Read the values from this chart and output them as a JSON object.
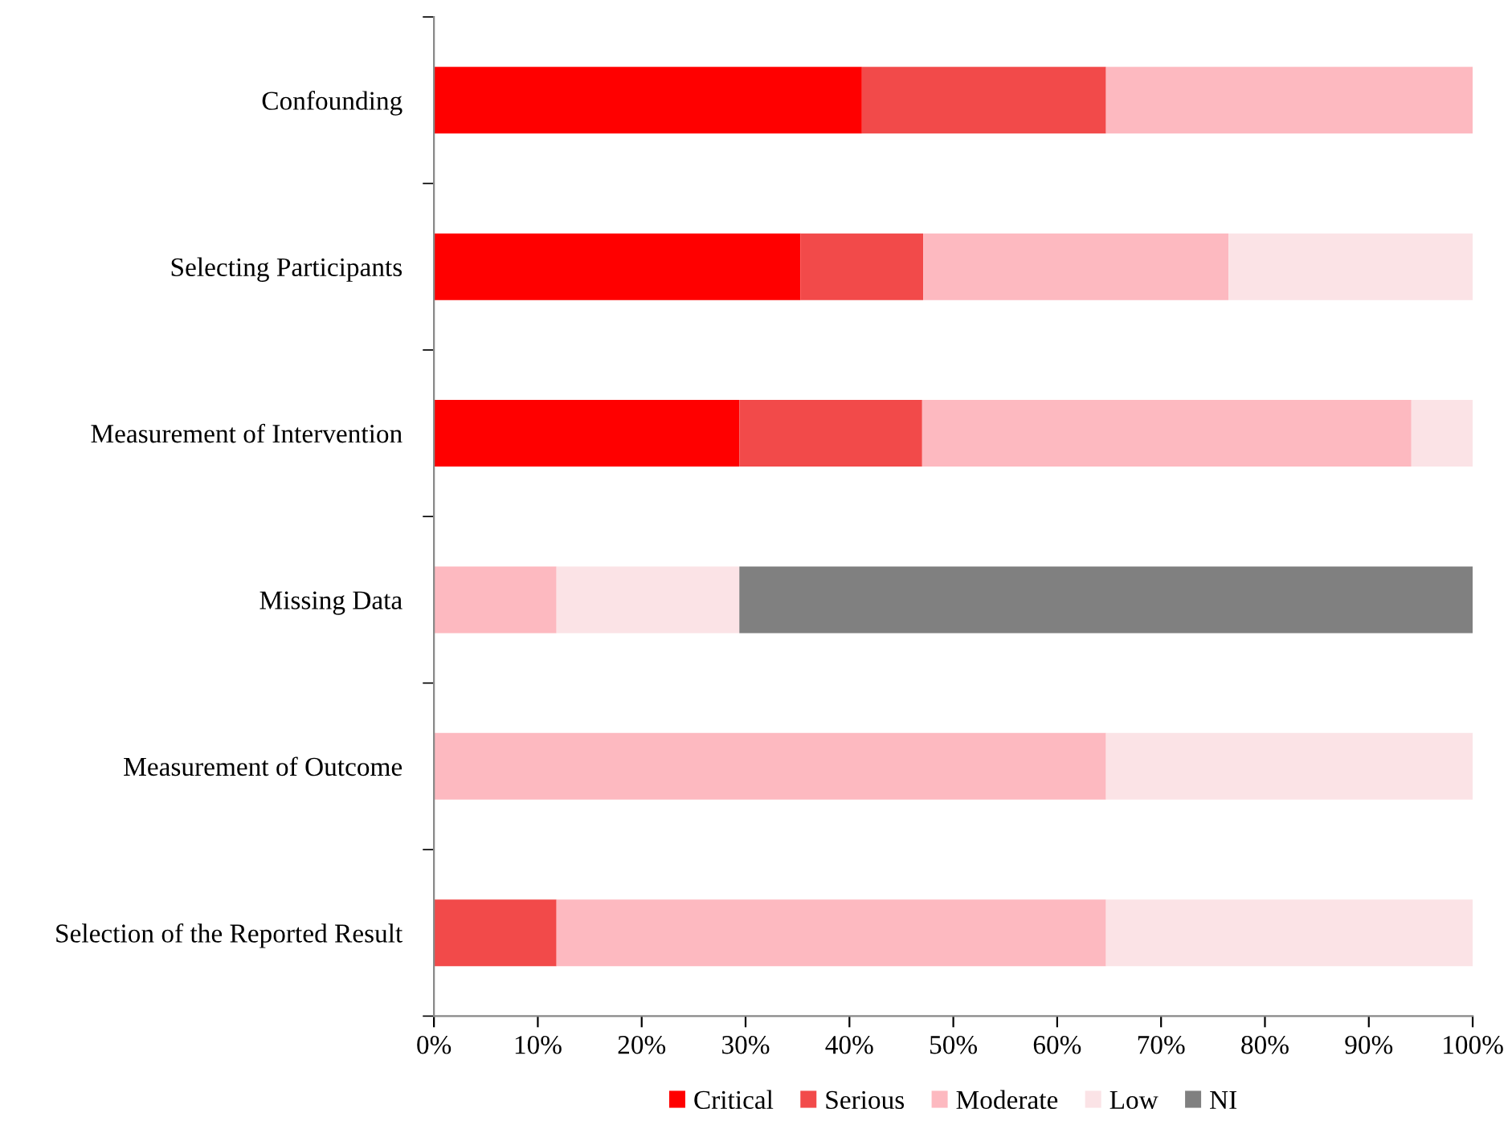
{
  "chart_data": {
    "type": "bar",
    "orientation": "horizontal",
    "stacked": true,
    "legend": "bottom",
    "grid": false,
    "categories": [
      "Confounding",
      "Selecting Participants",
      "Measurement of Intervention",
      "Missing Data",
      "Measurement of Outcome",
      "Selection of the Reported Result"
    ],
    "series": [
      {
        "name": "Critical",
        "color": "#ff0000",
        "values": [
          41.2,
          35.3,
          29.4,
          0,
          0,
          0
        ]
      },
      {
        "name": "Serious",
        "color": "#f24a4a",
        "values": [
          23.5,
          11.8,
          17.6,
          0,
          0,
          11.8
        ]
      },
      {
        "name": "Moderate",
        "color": "#fdb9c0",
        "values": [
          35.3,
          29.4,
          47.1,
          11.8,
          64.7,
          52.9
        ]
      },
      {
        "name": "Low",
        "color": "#fbe3e6",
        "values": [
          0,
          23.5,
          5.9,
          17.6,
          35.3,
          35.3
        ]
      },
      {
        "name": "NI",
        "color": "#808080",
        "values": [
          0,
          0,
          0,
          70.6,
          0,
          0
        ]
      }
    ],
    "xlim": [
      0,
      100
    ],
    "xticks": [
      {
        "value": 0,
        "label": "0%"
      },
      {
        "value": 10,
        "label": "10%"
      },
      {
        "value": 20,
        "label": "20%"
      },
      {
        "value": 30,
        "label": "30%"
      },
      {
        "value": 40,
        "label": "40%"
      },
      {
        "value": 50,
        "label": "50%"
      },
      {
        "value": 60,
        "label": "60%"
      },
      {
        "value": 70,
        "label": "70%"
      },
      {
        "value": 80,
        "label": "80%"
      },
      {
        "value": 90,
        "label": "90%"
      },
      {
        "value": 100,
        "label": "100%"
      }
    ]
  }
}
